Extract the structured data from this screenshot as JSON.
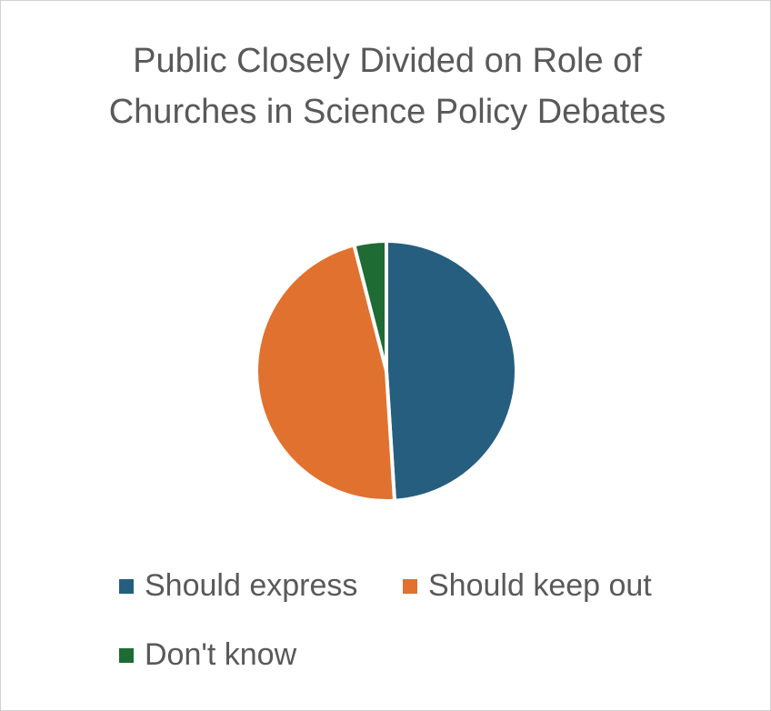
{
  "chart_data": {
    "type": "pie",
    "title": "Public Closely Divided on Role of Churches in Science Policy Debates",
    "slices": [
      {
        "label": "Should express",
        "value": 49,
        "color": "#255E7F"
      },
      {
        "label": "Should keep out",
        "value": 47,
        "color": "#E0712F"
      },
      {
        "label": "Don't know",
        "value": 4,
        "color": "#1E6B34"
      }
    ],
    "legend_position": "bottom"
  }
}
